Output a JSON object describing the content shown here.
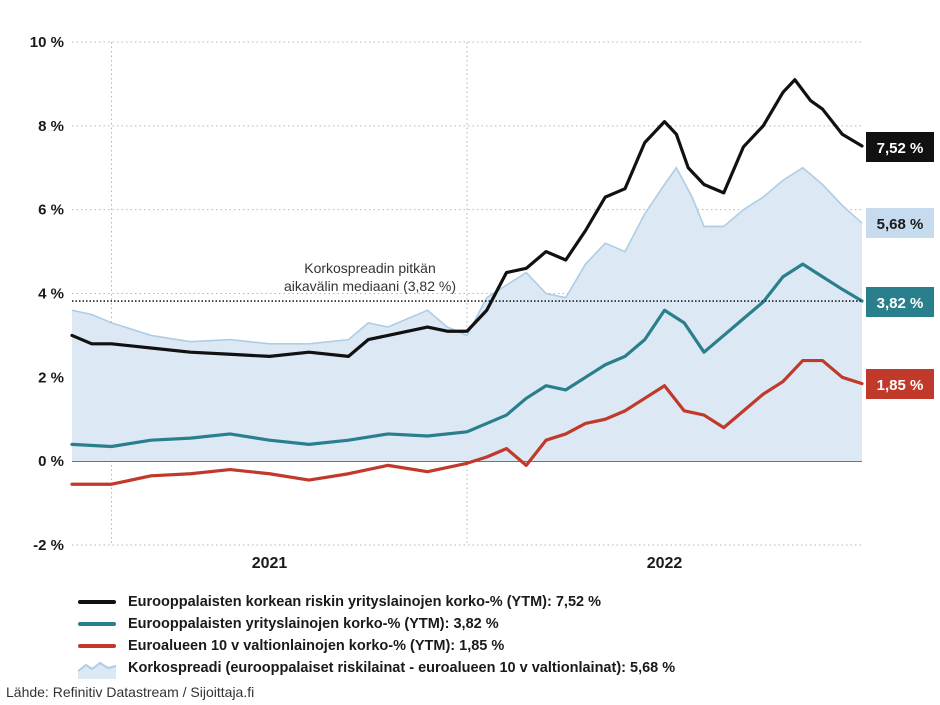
{
  "chart_data": {
    "type": "line",
    "ylim": [
      -2,
      10
    ],
    "y_ticks": [
      -2,
      0,
      2,
      4,
      6,
      8,
      10
    ],
    "y_tick_labels": [
      "-2 %",
      "0 %",
      "2 %",
      "4 %",
      "6 %",
      "8 %",
      "10 %"
    ],
    "x_range": [
      2020.5,
      2022.5
    ],
    "x_ticks": [
      2021,
      2022
    ],
    "x_tick_labels": [
      "2021",
      "2022"
    ],
    "grid": "dotted",
    "median": {
      "value": 3.82,
      "label_line1": "Korkospreadin pitkän",
      "label_line2": "aikavälin mediaani (3,82 %)"
    },
    "series": [
      {
        "name": "Eurooppalaisten korkean riskin yrityslainojen korko-% (YTM): 7,52 %",
        "type": "line",
        "color": "#111111",
        "end_label": "7,52 %",
        "x": [
          2020.5,
          2020.55,
          2020.6,
          2020.7,
          2020.8,
          2020.9,
          2021.0,
          2021.1,
          2021.2,
          2021.25,
          2021.3,
          2021.4,
          2021.45,
          2021.5,
          2021.55,
          2021.6,
          2021.65,
          2021.7,
          2021.75,
          2021.8,
          2021.85,
          2021.9,
          2021.95,
          2022.0,
          2022.03,
          2022.06,
          2022.1,
          2022.15,
          2022.2,
          2022.25,
          2022.3,
          2022.33,
          2022.37,
          2022.4,
          2022.45,
          2022.5
        ],
        "y": [
          3.0,
          2.8,
          2.8,
          2.7,
          2.6,
          2.55,
          2.5,
          2.6,
          2.5,
          2.9,
          3.0,
          3.2,
          3.1,
          3.1,
          3.6,
          4.5,
          4.6,
          5.0,
          4.8,
          5.5,
          6.3,
          6.5,
          7.6,
          8.1,
          7.8,
          7.0,
          6.6,
          6.4,
          7.5,
          8.0,
          8.8,
          9.1,
          8.6,
          8.4,
          7.8,
          7.52
        ]
      },
      {
        "name": "Eurooppalaisten yrityslainojen korko-% (YTM): 3,82 %",
        "type": "line",
        "color": "#2a7f8c",
        "end_label": "3,82 %",
        "x": [
          2020.5,
          2020.6,
          2020.7,
          2020.8,
          2020.9,
          2021.0,
          2021.1,
          2021.2,
          2021.3,
          2021.4,
          2021.5,
          2021.55,
          2021.6,
          2021.65,
          2021.7,
          2021.75,
          2021.8,
          2021.85,
          2021.9,
          2021.95,
          2022.0,
          2022.05,
          2022.1,
          2022.15,
          2022.2,
          2022.25,
          2022.3,
          2022.35,
          2022.4,
          2022.45,
          2022.5
        ],
        "y": [
          0.4,
          0.35,
          0.5,
          0.55,
          0.65,
          0.5,
          0.4,
          0.5,
          0.65,
          0.6,
          0.7,
          0.9,
          1.1,
          1.5,
          1.8,
          1.7,
          2.0,
          2.3,
          2.5,
          2.9,
          3.6,
          3.3,
          2.6,
          3.0,
          3.4,
          3.8,
          4.4,
          4.7,
          4.4,
          4.1,
          3.82
        ]
      },
      {
        "name": "Euroalueen 10 v valtionlainojen korko-% (YTM): 1,85 %",
        "type": "line",
        "color": "#c0392b",
        "end_label": "1,85 %",
        "x": [
          2020.5,
          2020.6,
          2020.7,
          2020.8,
          2020.9,
          2021.0,
          2021.1,
          2021.2,
          2021.3,
          2021.4,
          2021.5,
          2021.55,
          2021.6,
          2021.65,
          2021.7,
          2021.75,
          2021.8,
          2021.85,
          2021.9,
          2021.95,
          2022.0,
          2022.05,
          2022.1,
          2022.15,
          2022.2,
          2022.25,
          2022.3,
          2022.35,
          2022.4,
          2022.45,
          2022.5
        ],
        "y": [
          -0.55,
          -0.55,
          -0.35,
          -0.3,
          -0.2,
          -0.3,
          -0.45,
          -0.3,
          -0.1,
          -0.25,
          -0.05,
          0.1,
          0.3,
          -0.1,
          0.5,
          0.65,
          0.9,
          1.0,
          1.2,
          1.5,
          1.8,
          1.2,
          1.1,
          0.8,
          1.2,
          1.6,
          1.9,
          2.4,
          2.4,
          2.0,
          1.85
        ]
      },
      {
        "name": "Korkospreadi (eurooppalaiset riskilainat - euroalueen 10 v valtionlainat): 5,68 %",
        "type": "area",
        "color": "#aecde4",
        "fill": "#dce9f4",
        "end_label": "5,68 %",
        "x": [
          2020.5,
          2020.55,
          2020.6,
          2020.7,
          2020.8,
          2020.9,
          2021.0,
          2021.1,
          2021.2,
          2021.25,
          2021.3,
          2021.35,
          2021.4,
          2021.45,
          2021.5,
          2021.55,
          2021.6,
          2021.65,
          2021.7,
          2021.75,
          2021.8,
          2021.85,
          2021.9,
          2021.95,
          2022.0,
          2022.03,
          2022.07,
          2022.1,
          2022.15,
          2022.2,
          2022.25,
          2022.3,
          2022.35,
          2022.4,
          2022.45,
          2022.5
        ],
        "y": [
          3.6,
          3.5,
          3.3,
          3.0,
          2.85,
          2.9,
          2.8,
          2.8,
          2.9,
          3.3,
          3.2,
          3.4,
          3.6,
          3.2,
          3.0,
          3.9,
          4.2,
          4.5,
          4.0,
          3.9,
          4.7,
          5.2,
          5.0,
          5.9,
          6.6,
          7.0,
          6.3,
          5.6,
          5.6,
          6.0,
          6.3,
          6.7,
          7.0,
          6.6,
          6.1,
          5.68
        ]
      }
    ]
  },
  "legend": [
    {
      "label": "Eurooppalaisten korkean riskin yrityslainojen korko-% (YTM): 7,52 %",
      "kind": "line",
      "color": "#111111"
    },
    {
      "label": "Eurooppalaisten yrityslainojen korko-% (YTM): 3,82 %",
      "kind": "line",
      "color": "#2a7f8c"
    },
    {
      "label": "Euroalueen 10 v valtionlainojen korko-% (YTM): 1,85 %",
      "kind": "line",
      "color": "#c0392b"
    },
    {
      "label": "Korkospreadi (eurooppalaiset riskilainat - euroalueen 10 v valtionlainat): 5,68 %",
      "kind": "area",
      "color": "#aecde4"
    }
  ],
  "source": "Lähde: Refinitiv Datastream / Sijoittaja.fi"
}
